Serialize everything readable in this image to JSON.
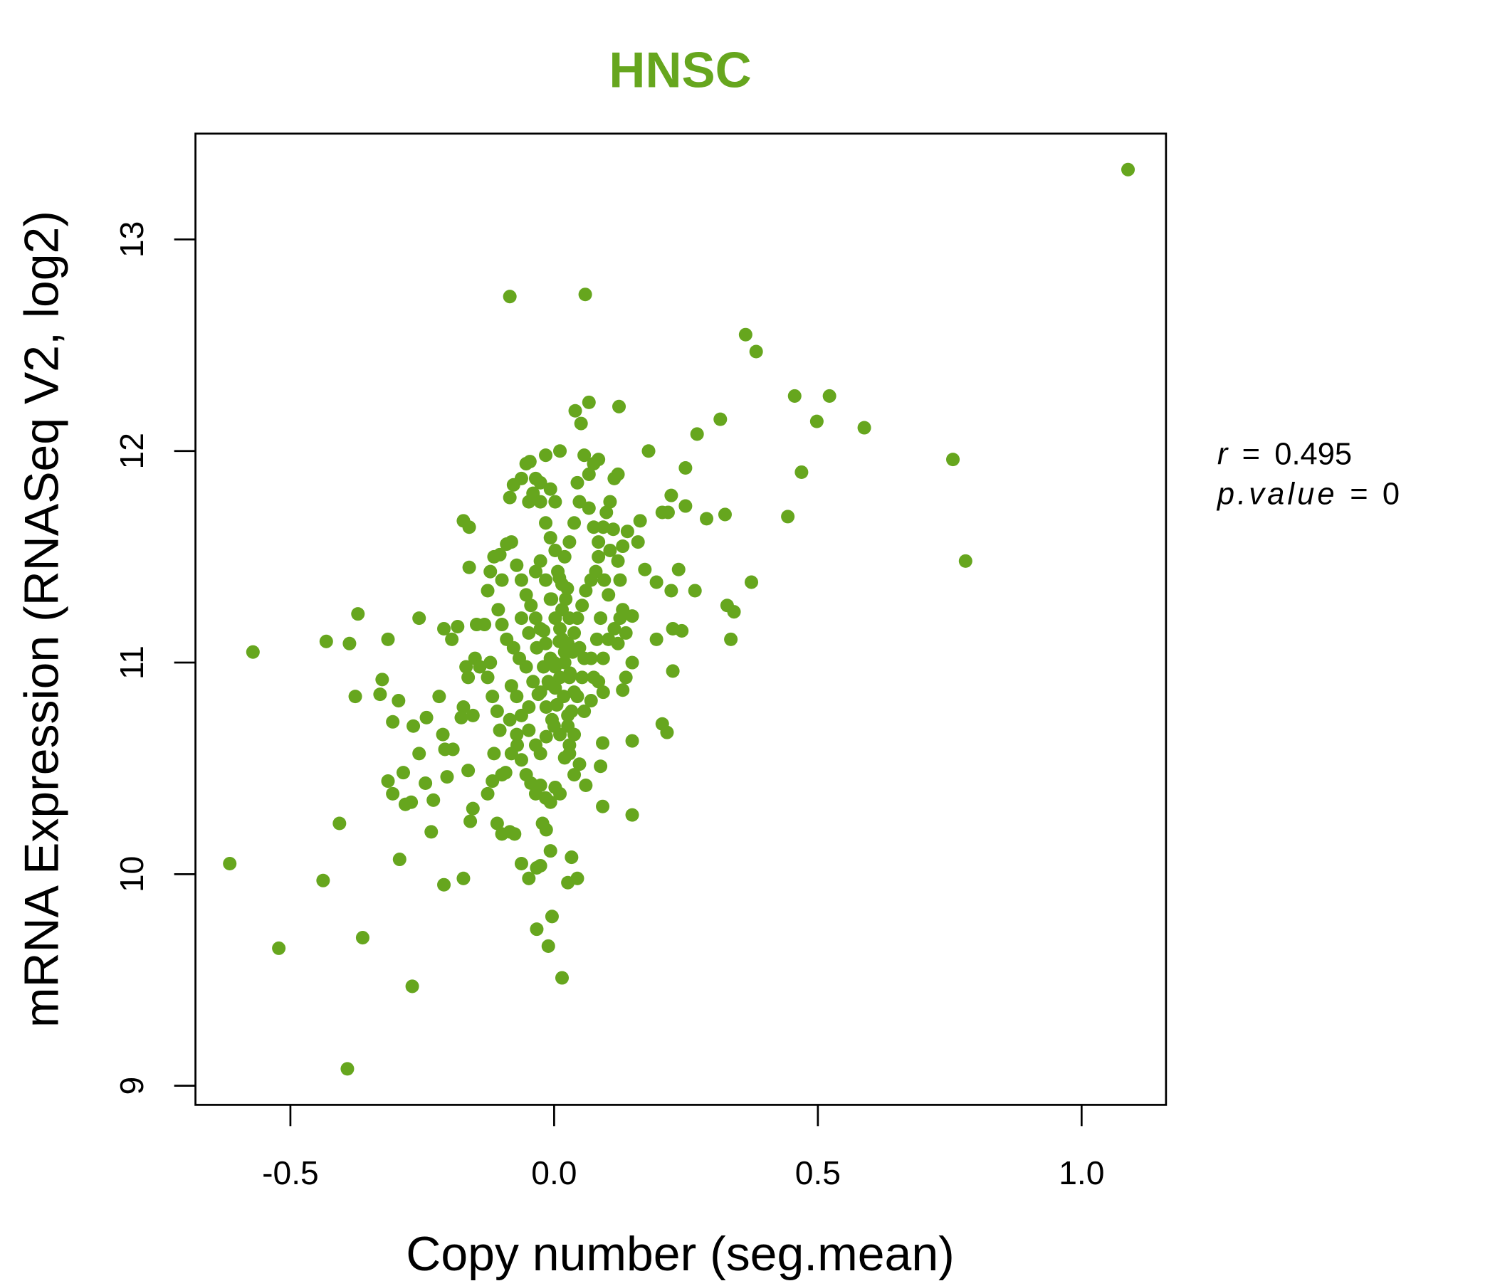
{
  "chart_data": {
    "type": "scatter",
    "title": "HNSC",
    "xlabel": "Copy number (seg.mean)",
    "ylabel": "mRNA Expression (RNASeq V2, log2)",
    "xlim": [
      -0.68,
      1.16
    ],
    "ylim": [
      8.91,
      13.5
    ],
    "xticks": [
      {
        "value": -0.5,
        "label": "-0.5"
      },
      {
        "value": 0,
        "label": "0.0"
      },
      {
        "value": 0.5,
        "label": "0.5"
      },
      {
        "value": 1.0,
        "label": "1.0"
      }
    ],
    "yticks": [
      {
        "value": 9,
        "label": "9"
      },
      {
        "value": 10,
        "label": "10"
      },
      {
        "value": 11,
        "label": "11"
      },
      {
        "value": 12,
        "label": "12"
      },
      {
        "value": 13,
        "label": "13"
      }
    ],
    "grid": false,
    "annotation": {
      "r_label": "r",
      "r_value": "0.495",
      "p_label": "p.value",
      "p_value": "0",
      "equals": "="
    },
    "colors": {
      "point": "#66a61e",
      "title": "#66a61e",
      "axis": "#000000"
    },
    "points": [
      [
        1.088,
        13.33
      ],
      [
        -0.084,
        12.73
      ],
      [
        0.059,
        12.74
      ],
      [
        0.363,
        12.55
      ],
      [
        0.383,
        12.47
      ],
      [
        0.456,
        12.26
      ],
      [
        0.522,
        12.26
      ],
      [
        0.498,
        12.14
      ],
      [
        0.588,
        12.11
      ],
      [
        0.315,
        12.15
      ],
      [
        0.271,
        12.08
      ],
      [
        0.756,
        11.96
      ],
      [
        0.469,
        11.9
      ],
      [
        0.78,
        11.48
      ],
      [
        0.443,
        11.69
      ],
      [
        0.324,
        11.7
      ],
      [
        0.289,
        11.68
      ],
      [
        0.374,
        11.38
      ],
      [
        0.328,
        11.27
      ],
      [
        0.341,
        11.24
      ],
      [
        0.335,
        11.11
      ],
      [
        0.249,
        11.92
      ],
      [
        0.249,
        11.74
      ],
      [
        0.222,
        11.79
      ],
      [
        0.179,
        12.0
      ],
      [
        0.123,
        12.21
      ],
      [
        0.066,
        12.23
      ],
      [
        0.04,
        12.19
      ],
      [
        0.051,
        12.13
      ],
      [
        0.011,
        12.0
      ],
      [
        0.205,
        11.71
      ],
      [
        0.216,
        11.71
      ],
      [
        0.163,
        11.67
      ],
      [
        0.159,
        11.57
      ],
      [
        0.172,
        11.44
      ],
      [
        0.236,
        11.44
      ],
      [
        0.194,
        11.38
      ],
      [
        0.267,
        11.34
      ],
      [
        0.222,
        11.34
      ],
      [
        0.225,
        11.16
      ],
      [
        0.242,
        11.15
      ],
      [
        0.194,
        11.11
      ],
      [
        0.148,
        11.22
      ],
      [
        0.148,
        11.0
      ],
      [
        0.225,
        10.96
      ],
      [
        0.136,
        10.93
      ],
      [
        0.13,
        10.87
      ],
      [
        0.205,
        10.71
      ],
      [
        0.214,
        10.67
      ],
      [
        0.148,
        10.63
      ],
      [
        0.092,
        10.62
      ],
      [
        0.088,
        10.51
      ],
      [
        0.092,
        10.32
      ],
      [
        0.148,
        10.28
      ],
      [
        0.06,
        10.42
      ],
      [
        -0.571,
        11.05
      ],
      [
        -0.615,
        10.05
      ],
      [
        -0.522,
        9.65
      ],
      [
        -0.438,
        9.97
      ],
      [
        -0.363,
        9.7
      ],
      [
        -0.269,
        9.47
      ],
      [
        -0.392,
        9.08
      ],
      [
        -0.407,
        10.24
      ],
      [
        -0.293,
        10.07
      ],
      [
        -0.233,
        10.2
      ],
      [
        -0.209,
        9.95
      ],
      [
        -0.172,
        9.98
      ],
      [
        -0.432,
        11.1
      ],
      [
        -0.388,
        11.09
      ],
      [
        -0.372,
        11.23
      ],
      [
        -0.315,
        11.11
      ],
      [
        -0.256,
        11.21
      ],
      [
        -0.377,
        10.84
      ],
      [
        -0.326,
        10.92
      ],
      [
        -0.33,
        10.85
      ],
      [
        -0.295,
        10.82
      ],
      [
        -0.306,
        10.72
      ],
      [
        -0.267,
        10.7
      ],
      [
        -0.242,
        10.74
      ],
      [
        -0.218,
        10.84
      ],
      [
        -0.315,
        10.44
      ],
      [
        -0.306,
        10.38
      ],
      [
        -0.286,
        10.48
      ],
      [
        -0.282,
        10.33
      ],
      [
        -0.271,
        10.34
      ],
      [
        -0.244,
        10.43
      ],
      [
        -0.229,
        10.35
      ],
      [
        -0.256,
        10.57
      ],
      [
        -0.203,
        10.46
      ],
      [
        -0.211,
        10.66
      ],
      [
        -0.207,
        10.59
      ],
      [
        -0.192,
        10.59
      ],
      [
        -0.209,
        11.16
      ],
      [
        -0.194,
        11.11
      ],
      [
        -0.183,
        11.17
      ],
      [
        -0.172,
        11.67
      ],
      [
        -0.161,
        11.64
      ],
      [
        -0.161,
        11.45
      ],
      [
        -0.163,
        10.49
      ],
      [
        -0.159,
        10.25
      ],
      [
        -0.154,
        10.31
      ],
      [
        -0.163,
        10.93
      ],
      [
        -0.172,
        10.79
      ],
      [
        -0.176,
        10.74
      ],
      [
        -0.154,
        10.75
      ],
      [
        -0.167,
        10.98
      ],
      [
        -0.15,
        11.02
      ],
      [
        -0.141,
        10.98
      ],
      [
        -0.132,
        11.18
      ],
      [
        -0.147,
        11.18
      ],
      [
        -0.121,
        11.0
      ],
      [
        -0.126,
        10.93
      ],
      [
        -0.117,
        10.84
      ],
      [
        -0.108,
        10.77
      ],
      [
        -0.103,
        10.68
      ],
      [
        -0.114,
        10.57
      ],
      [
        -0.117,
        10.44
      ],
      [
        -0.126,
        10.38
      ],
      [
        -0.108,
        10.24
      ],
      [
        -0.099,
        10.19
      ],
      [
        -0.084,
        10.2
      ],
      [
        -0.075,
        10.19
      ],
      [
        -0.062,
        10.05
      ],
      [
        -0.048,
        9.98
      ],
      [
        -0.033,
        10.03
      ],
      [
        -0.026,
        10.04
      ],
      [
        -0.033,
        9.74
      ],
      [
        -0.011,
        9.66
      ],
      [
        -0.004,
        9.8
      ],
      [
        0.015,
        9.51
      ],
      [
        0.026,
        9.96
      ],
      [
        0.044,
        9.98
      ],
      [
        0.033,
        10.08
      ],
      [
        -0.007,
        10.11
      ],
      [
        -0.015,
        10.21
      ],
      [
        -0.022,
        10.24
      ],
      [
        -0.099,
        10.47
      ],
      [
        -0.092,
        10.48
      ],
      [
        -0.081,
        10.57
      ],
      [
        -0.07,
        10.61
      ],
      [
        -0.062,
        10.54
      ],
      [
        -0.053,
        10.47
      ],
      [
        -0.044,
        10.43
      ],
      [
        -0.035,
        10.38
      ],
      [
        -0.026,
        10.42
      ],
      [
        -0.016,
        10.36
      ],
      [
        -0.007,
        10.34
      ],
      [
        0.002,
        10.41
      ],
      [
        0.011,
        10.38
      ],
      [
        0.02,
        10.55
      ],
      [
        0.029,
        10.57
      ],
      [
        0.038,
        10.47
      ],
      [
        0.048,
        10.52
      ],
      [
        0.029,
        10.61
      ],
      [
        0.038,
        10.66
      ],
      [
        0.026,
        10.75
      ],
      [
        0.018,
        10.84
      ],
      [
        0.011,
        10.93
      ],
      [
        0.002,
        10.98
      ],
      [
        -0.007,
        11.02
      ],
      [
        -0.016,
        11.09
      ],
      [
        -0.026,
        11.16
      ],
      [
        -0.035,
        11.21
      ],
      [
        -0.044,
        11.27
      ],
      [
        -0.053,
        11.32
      ],
      [
        -0.062,
        11.39
      ],
      [
        -0.071,
        11.46
      ],
      [
        -0.081,
        11.57
      ],
      [
        -0.084,
        11.78
      ],
      [
        -0.077,
        11.84
      ],
      [
        -0.062,
        11.87
      ],
      [
        -0.053,
        11.94
      ],
      [
        -0.046,
        11.95
      ],
      [
        -0.035,
        11.87
      ],
      [
        -0.048,
        11.76
      ],
      [
        -0.04,
        11.8
      ],
      [
        -0.026,
        11.76
      ],
      [
        -0.016,
        11.66
      ],
      [
        -0.007,
        11.59
      ],
      [
        0.002,
        11.53
      ],
      [
        0.007,
        11.43
      ],
      [
        0.015,
        11.37
      ],
      [
        0.022,
        11.3
      ],
      [
        0.029,
        11.21
      ],
      [
        0.038,
        11.14
      ],
      [
        0.048,
        11.07
      ],
      [
        0.057,
        11.02
      ],
      [
        0.053,
        10.93
      ],
      [
        0.044,
        10.84
      ],
      [
        0.033,
        10.77
      ],
      [
        0.026,
        10.7
      ],
      [
        0.011,
        10.66
      ],
      [
        -0.004,
        10.73
      ],
      [
        -0.015,
        10.79
      ],
      [
        -0.026,
        10.86
      ],
      [
        -0.04,
        10.91
      ],
      [
        -0.053,
        10.98
      ],
      [
        -0.066,
        11.02
      ],
      [
        -0.077,
        11.07
      ],
      [
        -0.09,
        11.11
      ],
      [
        -0.099,
        11.18
      ],
      [
        -0.106,
        11.25
      ],
      [
        -0.099,
        11.39
      ],
      [
        -0.114,
        11.5
      ],
      [
        -0.103,
        11.51
      ],
      [
        -0.09,
        11.56
      ],
      [
        -0.126,
        11.34
      ],
      [
        -0.121,
        11.43
      ],
      [
        -0.062,
        11.21
      ],
      [
        -0.048,
        11.14
      ],
      [
        -0.033,
        11.07
      ],
      [
        -0.02,
        10.98
      ],
      [
        -0.011,
        10.91
      ],
      [
        0.002,
        10.88
      ],
      [
        0.015,
        11.11
      ],
      [
        0.026,
        11.09
      ],
      [
        0.035,
        11.05
      ],
      [
        0.044,
        11.21
      ],
      [
        0.053,
        11.27
      ],
      [
        0.06,
        11.34
      ],
      [
        0.07,
        11.39
      ],
      [
        0.079,
        11.43
      ],
      [
        0.084,
        11.5
      ],
      [
        0.093,
        11.64
      ],
      [
        0.099,
        11.71
      ],
      [
        0.106,
        11.76
      ],
      [
        0.114,
        11.87
      ],
      [
        0.121,
        11.89
      ],
      [
        0.084,
        11.96
      ],
      [
        0.075,
        11.94
      ],
      [
        0.066,
        11.89
      ],
      [
        0.057,
        11.98
      ],
      [
        0.048,
        11.76
      ],
      [
        0.038,
        11.66
      ],
      [
        0.029,
        11.57
      ],
      [
        0.02,
        11.5
      ],
      [
        0.002,
        11.76
      ],
      [
        -0.007,
        11.82
      ],
      [
        -0.016,
        11.98
      ],
      [
        -0.026,
        11.85
      ],
      [
        0.044,
        11.85
      ],
      [
        0.066,
        11.73
      ],
      [
        0.075,
        11.64
      ],
      [
        0.084,
        11.57
      ],
      [
        0.095,
        11.39
      ],
      [
        0.103,
        11.32
      ],
      [
        0.088,
        11.21
      ],
      [
        0.081,
        11.11
      ],
      [
        0.07,
        11.02
      ],
      [
        0.075,
        10.93
      ],
      [
        0.084,
        10.91
      ],
      [
        0.093,
        10.86
      ],
      [
        0.07,
        10.82
      ],
      [
        0.057,
        10.77
      ],
      [
        -0.026,
        11.48
      ],
      [
        -0.016,
        11.39
      ],
      [
        -0.035,
        11.43
      ],
      [
        -0.007,
        11.3
      ],
      [
        0.002,
        11.21
      ],
      [
        0.011,
        11.16
      ],
      [
        0.02,
        11.0
      ],
      [
        0.029,
        10.93
      ],
      [
        0.038,
        10.86
      ],
      [
        -0.062,
        10.75
      ],
      [
        -0.048,
        10.68
      ],
      [
        -0.035,
        10.61
      ],
      [
        -0.026,
        10.57
      ],
      [
        -0.048,
        10.79
      ],
      [
        -0.071,
        10.84
      ],
      [
        -0.081,
        10.89
      ],
      [
        -0.084,
        10.73
      ],
      [
        -0.071,
        10.66
      ],
      [
        0.103,
        11.11
      ],
      [
        0.093,
        11.02
      ],
      [
        0.121,
        11.09
      ],
      [
        0.114,
        11.16
      ],
      [
        0.125,
        11.21
      ],
      [
        0.136,
        11.14
      ],
      [
        0.13,
        11.25
      ],
      [
        0.121,
        11.48
      ],
      [
        0.13,
        11.55
      ],
      [
        0.139,
        11.62
      ],
      [
        0.112,
        11.63
      ],
      [
        0.125,
        11.39
      ],
      [
        0.106,
        11.53
      ],
      [
        0.0,
        11.0
      ],
      [
        0.01,
        11.1
      ],
      [
        -0.01,
        10.9
      ],
      [
        0.02,
        11.05
      ],
      [
        -0.02,
        11.15
      ],
      [
        0.005,
        10.8
      ],
      [
        0.015,
        11.25
      ],
      [
        -0.005,
        11.3
      ],
      [
        0.03,
        10.95
      ],
      [
        -0.03,
        10.85
      ],
      [
        0.0,
        10.7
      ],
      [
        0.01,
        11.4
      ],
      [
        -0.015,
        10.65
      ],
      [
        0.025,
        11.35
      ]
    ]
  }
}
